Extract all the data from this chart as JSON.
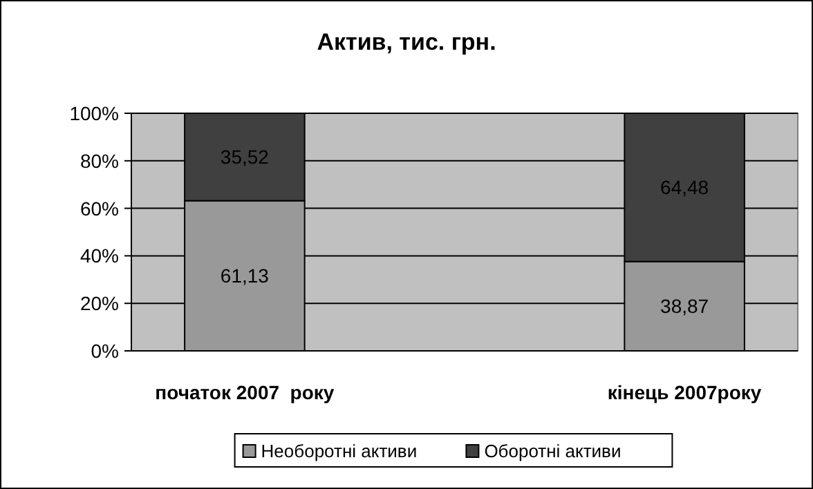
{
  "chart_data": {
    "type": "bar",
    "title": "Актив, тис. грн.",
    "stacked": true,
    "categories": [
      "початок 2007  року",
      "кінець 2007року"
    ],
    "series": [
      {
        "name": "Необоротні активи",
        "color": "#999999",
        "values": [
          63.2,
          37.6
        ]
      },
      {
        "name": "Оборотні активи",
        "color": "#404040",
        "values": [
          36.8,
          62.4
        ]
      }
    ],
    "annotations": [
      "61,13",
      "35,52",
      "38,87",
      "64,48"
    ],
    "ylim": [
      0,
      100
    ],
    "yticks": [
      {
        "value": 0,
        "label": "0%"
      },
      {
        "value": 20,
        "label": "20%"
      },
      {
        "value": 40,
        "label": "40%"
      },
      {
        "value": 60,
        "label": "60%"
      },
      {
        "value": 80,
        "label": "80%"
      },
      {
        "value": 100,
        "label": "100%"
      }
    ],
    "grid": "y",
    "legend": "bottom"
  }
}
